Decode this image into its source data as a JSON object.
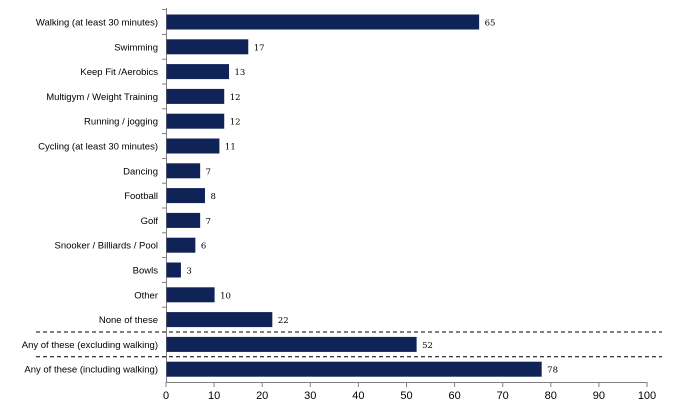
{
  "chart_data": {
    "type": "bar",
    "orientation": "horizontal",
    "title": "",
    "xlabel": "",
    "ylabel": "",
    "categories": [
      "Walking (at least 30 minutes)",
      "Swimming",
      "Keep Fit /Aerobics",
      "Multigym / Weight Training",
      "Running / jogging",
      "Cycling (at least 30 minutes)",
      "Dancing",
      "Football",
      "Golf",
      "Snooker / Billiards / Pool",
      "Bowls",
      "Other",
      "None of these",
      "Any of these (excluding walking)",
      "Any of these (including walking)"
    ],
    "values": [
      65,
      17,
      13,
      12,
      12,
      11,
      7,
      8,
      7,
      6,
      3,
      10,
      22,
      52,
      78
    ],
    "xlim": [
      0,
      100
    ],
    "xticks": [
      "0",
      "10",
      "20",
      "30",
      "40",
      "50",
      "60",
      "70",
      "80",
      "90",
      "100"
    ],
    "separators_before": [
      "Any of these (excluding walking)",
      "Any of these (including walking)"
    ],
    "grid": false,
    "legend": "none",
    "bar_color": "#0f2356"
  }
}
